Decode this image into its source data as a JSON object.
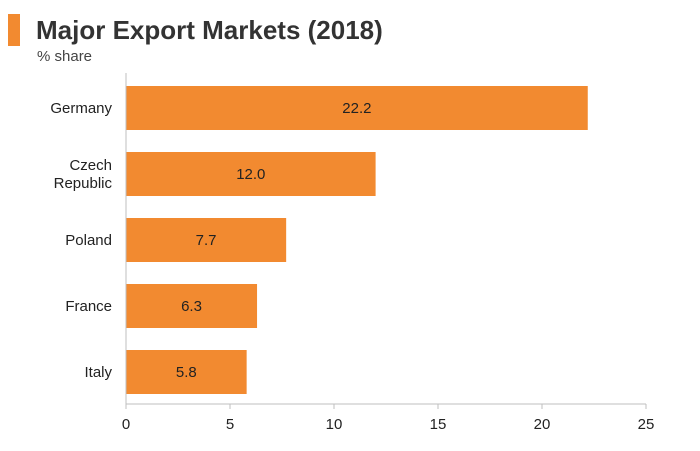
{
  "header": {
    "title": "Major Export Markets (2018)",
    "subtitle": "% share"
  },
  "colors": {
    "accent": "#f28a30",
    "bar": "#f28a30",
    "axis": "#bfbfbf",
    "text": "#222222"
  },
  "chart_data": {
    "type": "bar",
    "orientation": "horizontal",
    "title": "Major Export Markets (2018)",
    "subtitle": "% share",
    "categories": [
      "Germany",
      "Czech Republic",
      "Poland",
      "France",
      "Italy"
    ],
    "category_label_lines": [
      [
        "Germany"
      ],
      [
        "Czech",
        "Republic"
      ],
      [
        "Poland"
      ],
      [
        "France"
      ],
      [
        "Italy"
      ]
    ],
    "values": [
      22.2,
      12.0,
      7.7,
      6.3,
      5.8
    ],
    "data_labels": [
      "22.2",
      "12.0",
      "7.7",
      "6.3",
      "5.8"
    ],
    "xlim": [
      0,
      25
    ],
    "xticks": [
      0,
      5,
      10,
      15,
      20,
      25
    ],
    "xlabel": "",
    "ylabel": "",
    "grid": false,
    "legend": "none"
  }
}
